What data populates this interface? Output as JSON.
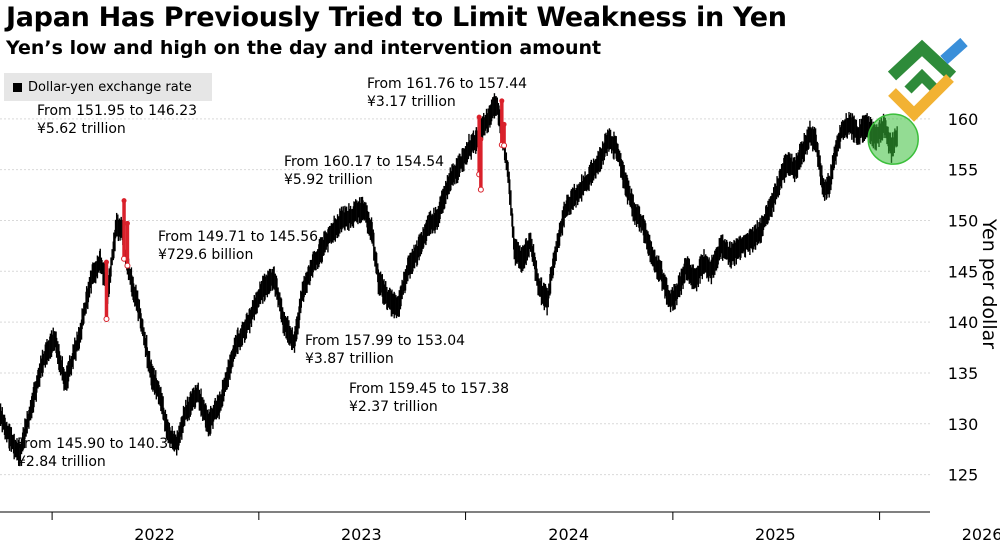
{
  "title": "Japan Has Previously Tried to Limit Weakness in Yen",
  "subtitle": "Yen’s low and high on the day and intervention amount",
  "colors": {
    "price": "#000000",
    "intervention": "#d9212b",
    "grid": "#d9d9d9",
    "highlight": "#3bbf3b"
  },
  "chart_data": {
    "type": "candlestick",
    "title": "Japan Has Previously Tried to Limit Weakness in Yen",
    "subtitle": "Yen’s low and high on the day and intervention amount",
    "legend": [
      "Dollar-yen exchange rate"
    ],
    "legend_position": "top-left",
    "ylabel": "Yen per dollar",
    "ylim": [
      122.5,
      165
    ],
    "yticks": [
      125,
      130,
      135,
      140,
      145,
      150,
      155,
      160
    ],
    "x_tick_labels": [
      "2022",
      "2023",
      "2024",
      "2025",
      "2026"
    ],
    "xlim": [
      "2021-10-01",
      "2026-03-31"
    ],
    "grid": true,
    "series": [
      {
        "name": "Dollar-yen exchange rate",
        "points": [
          [
            "2021-10-01",
            131
          ],
          [
            "2021-10-20",
            128.5
          ],
          [
            "2021-11-05",
            127
          ],
          [
            "2021-11-25",
            131.5
          ],
          [
            "2021-12-15",
            136
          ],
          [
            "2022-01-05",
            138.5
          ],
          [
            "2022-01-25",
            134
          ],
          [
            "2022-02-20",
            139
          ],
          [
            "2022-03-10",
            144
          ],
          [
            "2022-03-28",
            146
          ],
          [
            "2022-04-10",
            143
          ],
          [
            "2022-04-25",
            149.5
          ],
          [
            "2022-05-05",
            149
          ],
          [
            "2022-05-12",
            146
          ],
          [
            "2022-06-05",
            141
          ],
          [
            "2022-06-25",
            135
          ],
          [
            "2022-07-10",
            133
          ],
          [
            "2022-07-25",
            129
          ],
          [
            "2022-08-10",
            128
          ],
          [
            "2022-08-25",
            131
          ],
          [
            "2022-09-15",
            133
          ],
          [
            "2022-10-05",
            130
          ],
          [
            "2022-10-25",
            132
          ],
          [
            "2022-11-20",
            137.5
          ],
          [
            "2022-12-15",
            140
          ],
          [
            "2023-01-05",
            143
          ],
          [
            "2023-01-28",
            144.5
          ],
          [
            "2023-02-15",
            140
          ],
          [
            "2023-03-05",
            138
          ],
          [
            "2023-03-20",
            143
          ],
          [
            "2023-04-10",
            146
          ],
          [
            "2023-05-01",
            148
          ],
          [
            "2023-05-25",
            150
          ],
          [
            "2023-06-15",
            150.5
          ],
          [
            "2023-07-05",
            151.2
          ],
          [
            "2023-07-20",
            149
          ],
          [
            "2023-08-01",
            144
          ],
          [
            "2023-08-20",
            142
          ],
          [
            "2023-09-05",
            141.5
          ],
          [
            "2023-09-20",
            145
          ],
          [
            "2023-10-10",
            147
          ],
          [
            "2023-10-28",
            149.5
          ],
          [
            "2023-11-15",
            150.5
          ],
          [
            "2023-12-01",
            153.5
          ],
          [
            "2023-12-18",
            155
          ],
          [
            "2024-01-05",
            157
          ],
          [
            "2024-01-22",
            158
          ],
          [
            "2024-02-10",
            160
          ],
          [
            "2024-02-25",
            161.5
          ],
          [
            "2024-03-05",
            159
          ],
          [
            "2024-03-18",
            154
          ],
          [
            "2024-03-28",
            147
          ],
          [
            "2024-04-10",
            146
          ],
          [
            "2024-04-25",
            148
          ],
          [
            "2024-05-10",
            143.5
          ],
          [
            "2024-05-25",
            142
          ],
          [
            "2024-06-05",
            146
          ],
          [
            "2024-06-25",
            151
          ],
          [
            "2024-07-15",
            152.5
          ],
          [
            "2024-08-05",
            154
          ],
          [
            "2024-08-25",
            156
          ],
          [
            "2024-09-10",
            158
          ],
          [
            "2024-09-25",
            157
          ],
          [
            "2024-10-10",
            153.5
          ],
          [
            "2024-10-25",
            151
          ],
          [
            "2024-11-10",
            149.5
          ],
          [
            "2024-11-25",
            146.5
          ],
          [
            "2024-12-10",
            145
          ],
          [
            "2024-12-28",
            142
          ],
          [
            "2025-01-10",
            143
          ],
          [
            "2025-01-25",
            145.5
          ],
          [
            "2025-02-10",
            144
          ],
          [
            "2025-02-25",
            146
          ],
          [
            "2025-03-10",
            145
          ],
          [
            "2025-03-28",
            147.5
          ],
          [
            "2025-04-15",
            146.5
          ],
          [
            "2025-05-01",
            147.5
          ],
          [
            "2025-05-20",
            148
          ],
          [
            "2025-06-05",
            149
          ],
          [
            "2025-06-20",
            151
          ],
          [
            "2025-07-05",
            153
          ],
          [
            "2025-07-20",
            155.5
          ],
          [
            "2025-08-05",
            155
          ],
          [
            "2025-08-20",
            157
          ],
          [
            "2025-09-01",
            158.5
          ],
          [
            "2025-09-12",
            157.5
          ],
          [
            "2025-09-25",
            153
          ],
          [
            "2025-10-05",
            153.5
          ],
          [
            "2025-10-15",
            156.5
          ],
          [
            "2025-10-28",
            159
          ],
          [
            "2025-11-10",
            159.5
          ],
          [
            "2025-11-25",
            158.5
          ],
          [
            "2025-12-10",
            159.5
          ],
          [
            "2025-12-25",
            158
          ],
          [
            "2026-01-10",
            159.5
          ],
          [
            "2026-01-22",
            157
          ],
          [
            "2026-02-01",
            158.5
          ]
        ]
      }
    ],
    "interventions": [
      {
        "date": "2022-04-07",
        "high": 145.9,
        "low": 140.31,
        "amount": "¥2.84 trillion"
      },
      {
        "date": "2022-05-08",
        "high": 151.95,
        "low": 146.23,
        "amount": "¥5.62 trillion"
      },
      {
        "date": "2022-05-14",
        "high": 149.71,
        "low": 145.56,
        "amount": "¥729.6 billion"
      },
      {
        "date": "2024-01-25",
        "high": 160.17,
        "low": 154.54,
        "amount": "¥5.92 trillion"
      },
      {
        "date": "2024-01-28",
        "high": 157.99,
        "low": 153.04,
        "amount": "¥3.87 trillion"
      },
      {
        "date": "2024-03-05",
        "high": 161.76,
        "low": 157.44,
        "amount": "¥3.17 trillion"
      },
      {
        "date": "2024-03-09",
        "high": 159.45,
        "low": 157.38,
        "amount": "¥2.37 trillion"
      }
    ],
    "annotations": [
      {
        "line1": "From 145.90 to 140.31",
        "line2": "¥2.84 trillion"
      },
      {
        "line1": "From 151.95 to 146.23",
        "line2": "¥5.62 trillion"
      },
      {
        "line1": "From 149.71 to 145.56",
        "line2": "¥729.6 billion"
      },
      {
        "line1": "From 160.17 to 154.54",
        "line2": "¥5.92 trillion"
      },
      {
        "line1": "From 157.99 to 153.04",
        "line2": "¥3.87 trillion"
      },
      {
        "line1": "From 161.76 to 157.44",
        "line2": "¥3.17 trillion"
      },
      {
        "line1": "From 159.45 to 157.38",
        "line2": "¥2.37 trillion"
      }
    ],
    "highlight_circle": {
      "date": "2026-01-25",
      "center_value": 158
    }
  }
}
